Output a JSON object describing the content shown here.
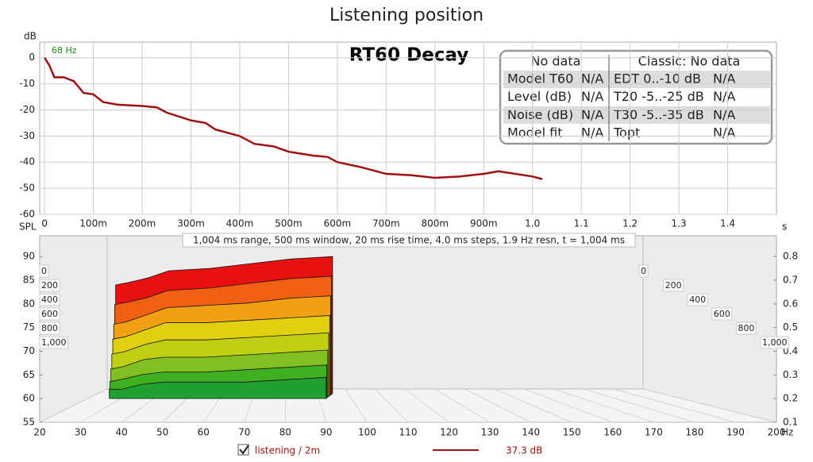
{
  "page_title": "Listening position",
  "chart_data": [
    {
      "type": "line",
      "title": "RT60 Decay",
      "annotation": "68 Hz",
      "ylabel": "dB",
      "xlabel": "s",
      "x": [
        0,
        0.01,
        0.02,
        0.04,
        0.06,
        0.08,
        0.1,
        0.12,
        0.15,
        0.2,
        0.23,
        0.25,
        0.3,
        0.33,
        0.35,
        0.4,
        0.43,
        0.47,
        0.5,
        0.55,
        0.58,
        0.6,
        0.65,
        0.7,
        0.75,
        0.8,
        0.85,
        0.9,
        0.93,
        1.0,
        1.02
      ],
      "series": [
        {
          "name": "listening / 2m",
          "color": "#a01010",
          "legend_value": "37.3 dB",
          "values": [
            0,
            -3,
            -7.5,
            -7.5,
            -9,
            -13.5,
            -14,
            -17,
            -18,
            -18.5,
            -19,
            -21,
            -24,
            -25,
            -27.5,
            -30,
            -33,
            -34,
            -36,
            -37.5,
            -38,
            -40,
            -42,
            -44.5,
            -45,
            -46,
            -45.5,
            -44.5,
            -43.5,
            -45.5,
            -46.5
          ]
        }
      ],
      "xlim": [
        -0.01,
        1.5
      ],
      "ylim": [
        -60,
        6
      ],
      "xticks": [
        0,
        {
          "value": 0.1,
          "label": "100m"
        },
        {
          "value": 0.2,
          "label": "200m"
        },
        {
          "value": 0.3,
          "label": "300m"
        },
        {
          "value": 0.4,
          "label": "400m"
        },
        {
          "value": 0.5,
          "label": "500m"
        },
        {
          "value": 0.6,
          "label": "600m"
        },
        {
          "value": 0.7,
          "label": "700m"
        },
        {
          "value": 0.8,
          "label": "800m"
        },
        {
          "value": 0.9,
          "label": "900m"
        },
        {
          "value": 1.0,
          "label": "1.0"
        },
        1.1,
        1.2,
        1.3,
        1.4
      ],
      "yticks": [
        0,
        -10,
        -20,
        -30,
        -40,
        -50,
        -60
      ],
      "grid": true,
      "panel": {
        "header": [
          "No data",
          "Classic: No data"
        ],
        "rows": [
          [
            "Model T60",
            "N/A",
            "EDT  0..-10 dB",
            "N/A"
          ],
          [
            "Level (dB)",
            "N/A",
            "T20 -5..-25 dB",
            "N/A"
          ],
          [
            "Noise (dB)",
            "N/A",
            "T30 -5..-35 dB",
            "N/A"
          ],
          [
            "Model fit",
            "N/A",
            "Topt",
            "N/A"
          ]
        ]
      }
    },
    {
      "type": "waterfall",
      "subtitle": "1,004 ms range, 500 ms window, 20 ms rise time, 4.0 ms steps,  1.9 Hz resn, t = 1,004 ms",
      "ylabel": "SPL",
      "xlabel": "Hz",
      "x": [
        37,
        40,
        45,
        50,
        60,
        70,
        80,
        90
      ],
      "slices": [
        {
          "t": 0,
          "color": "#e81010",
          "values": [
            83,
            83.5,
            84.5,
            86,
            86.5,
            87.5,
            88.5,
            89
          ]
        },
        {
          "t": 150,
          "color": "#f06010",
          "values": [
            79,
            79.5,
            80.5,
            82,
            82.5,
            83.5,
            84.5,
            85
          ]
        },
        {
          "t": 300,
          "color": "#f0a010",
          "values": [
            75,
            75.5,
            77,
            78.5,
            79,
            79.5,
            80.5,
            81
          ]
        },
        {
          "t": 450,
          "color": "#e0d010",
          "values": [
            72,
            72.5,
            74,
            75.5,
            75.5,
            76,
            76.5,
            77
          ]
        },
        {
          "t": 600,
          "color": "#c0d010",
          "values": [
            69,
            69.5,
            71,
            72,
            72,
            72.5,
            73,
            73.5
          ]
        },
        {
          "t": 750,
          "color": "#80c020",
          "values": [
            66,
            66.5,
            68,
            68.5,
            68.5,
            69,
            69.5,
            70
          ]
        },
        {
          "t": 900,
          "color": "#40b020",
          "values": [
            63.5,
            64,
            65,
            65.5,
            65.5,
            66,
            66.5,
            67
          ]
        },
        {
          "t": 1000,
          "color": "#20a030",
          "values": [
            62,
            62,
            63,
            63.5,
            63.5,
            63.5,
            64,
            64.5
          ]
        }
      ],
      "xlim": [
        20,
        200
      ],
      "ylim": [
        55,
        94.4
      ],
      "y2lim": [
        0.1,
        0.8875
      ],
      "zlim": [
        0,
        1000
      ],
      "xticks": [
        20,
        30,
        40,
        50,
        60,
        70,
        80,
        90,
        100,
        110,
        120,
        130,
        140,
        150,
        160,
        170,
        180,
        190,
        200
      ],
      "yticks": [
        55,
        60,
        65,
        70,
        75,
        80,
        85,
        90
      ],
      "y2ticks": [
        0.1,
        0.2,
        0.3,
        0.4,
        0.5,
        0.6,
        0.7,
        0.8
      ],
      "zticks": [
        0,
        200,
        400,
        600,
        800,
        {
          "value": 1000,
          "label": "1,000"
        }
      ]
    }
  ]
}
